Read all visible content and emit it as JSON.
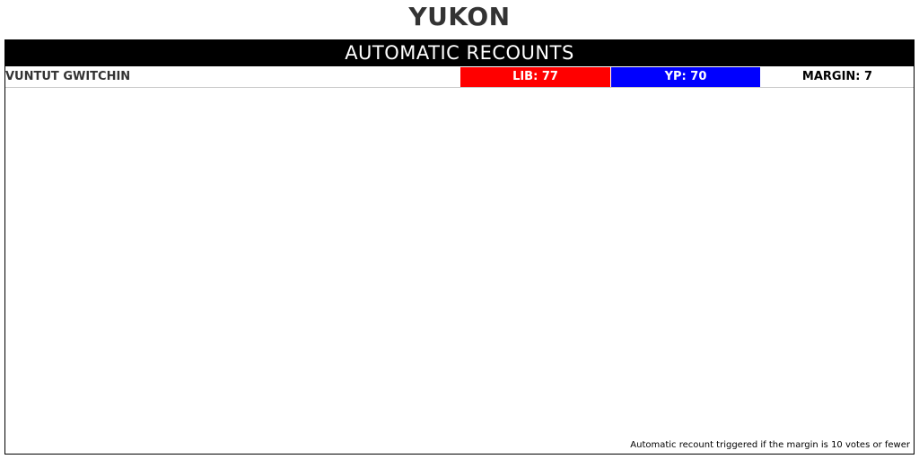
{
  "title": "YUKON",
  "panel": {
    "header": "AUTOMATIC RECOUNTS",
    "rows": [
      {
        "riding": "VUNTUT GWITCHIN",
        "lib": {
          "label": "LIB: 77",
          "color": "#ff0000"
        },
        "yp": {
          "label": "YP: 70",
          "color": "#0000ff"
        },
        "margin": "MARGIN: 7"
      }
    ],
    "footnote": "Automatic recount triggered if the margin is 10 votes or fewer"
  }
}
